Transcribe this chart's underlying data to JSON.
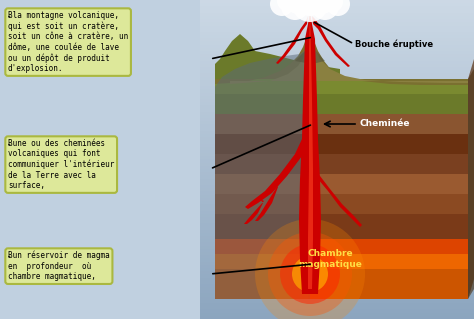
{
  "bg_color": "#c0d0e0",
  "box1_text": "Ƀla montagne volcanique,\nqui est soit un cratère,\nsoit un cône à cratère, un\ndôme, une coulée de lave\nou un dépôt de produit\nd'explosion.",
  "box2_text": "Ƀune ou des cheminées\nvolcaniques qui font\ncommuniquer l'intérieur\nde la Terre avec la\nsurface,",
  "box3_text": "Ƀun réservoir de magma\nen  profondeur  où\nchambre magmatique,",
  "box_bg": "#dde89a",
  "box_border": "#aab840",
  "label_bouche": "Bouche éruptive",
  "label_cheminee": "Cheminée",
  "label_chambre": "Chambre\nmagmatique",
  "font_color_dark": "#000000",
  "font_color_white": "#ffffff",
  "font_color_yellow": "#ffdd44"
}
